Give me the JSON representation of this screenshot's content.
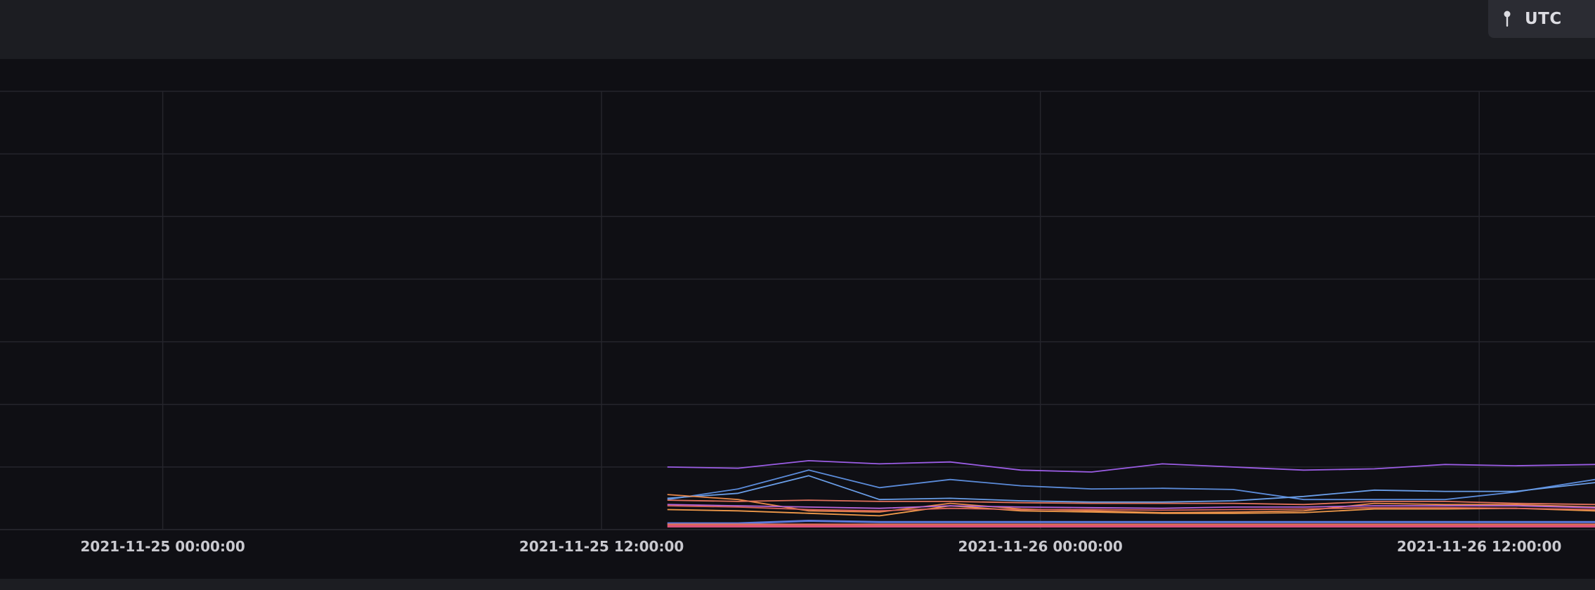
{
  "header": {
    "timezone_label": "UTC",
    "timezone_icon": "pin-icon"
  },
  "colors": {
    "background": "#0f0f14",
    "gridline": "#25252c",
    "tick_text": "#c9c9cf"
  },
  "chart_data": {
    "type": "line",
    "title": "",
    "xlabel": "",
    "ylabel": "",
    "x_axis_type": "datetime",
    "tick_labels": [
      "2021-11-25 00:00:00",
      "2021-11-25 12:00:00",
      "2021-11-26 00:00:00",
      "2021-11-26 12:00:00"
    ],
    "xlim": [
      "2021-11-24 19:33:00",
      "2021-11-26 15:10:00"
    ],
    "ylim": [
      0,
      7
    ],
    "grid": true,
    "legend": "none",
    "x": [
      "2021-11-25 13:48",
      "2021-11-25 15:44",
      "2021-11-25 17:40",
      "2021-11-25 19:36",
      "2021-11-25 21:32",
      "2021-11-25 23:28",
      "2021-11-26 01:24",
      "2021-11-26 03:20",
      "2021-11-26 05:16",
      "2021-11-26 07:12",
      "2021-11-26 09:08",
      "2021-11-26 11:04",
      "2021-11-26 13:00",
      "2021-11-26 15:10"
    ],
    "series": [
      {
        "color": "#9b5de5",
        "values": [
          1.0,
          0.98,
          1.1,
          1.05,
          1.08,
          0.95,
          0.92,
          1.05,
          1.0,
          0.95,
          0.97,
          1.04,
          1.02,
          1.04
        ]
      },
      {
        "color": "#5b8bd9",
        "values": [
          0.48,
          0.65,
          0.95,
          0.67,
          0.8,
          0.7,
          0.65,
          0.66,
          0.64,
          0.48,
          0.48,
          0.48,
          0.6,
          0.8
        ]
      },
      {
        "color": "#6a9ee8",
        "values": [
          0.5,
          0.58,
          0.86,
          0.48,
          0.5,
          0.46,
          0.44,
          0.44,
          0.46,
          0.53,
          0.63,
          0.61,
          0.61,
          0.75
        ]
      },
      {
        "color": "#e8884a",
        "values": [
          0.56,
          0.48,
          0.3,
          0.28,
          0.42,
          0.33,
          0.3,
          0.27,
          0.28,
          0.3,
          0.42,
          0.4,
          0.4,
          0.36
        ]
      },
      {
        "color": "#f09a4a",
        "values": [
          0.32,
          0.3,
          0.26,
          0.22,
          0.38,
          0.3,
          0.28,
          0.26,
          0.26,
          0.27,
          0.33,
          0.33,
          0.34,
          0.3
        ]
      },
      {
        "color": "#e2725b",
        "values": [
          0.47,
          0.45,
          0.47,
          0.45,
          0.45,
          0.43,
          0.42,
          0.42,
          0.42,
          0.4,
          0.45,
          0.45,
          0.42,
          0.4
        ]
      },
      {
        "color": "#b665d9",
        "values": [
          0.4,
          0.38,
          0.36,
          0.34,
          0.38,
          0.36,
          0.35,
          0.34,
          0.36,
          0.36,
          0.38,
          0.38,
          0.38,
          0.35
        ]
      },
      {
        "color": "#d9645a",
        "values": [
          0.38,
          0.36,
          0.32,
          0.3,
          0.34,
          0.32,
          0.32,
          0.31,
          0.32,
          0.33,
          0.35,
          0.35,
          0.34,
          0.32
        ]
      },
      {
        "color": "#5b78d9",
        "values": [
          0.1,
          0.1,
          0.14,
          0.12,
          0.12,
          0.12,
          0.12,
          0.12,
          0.12,
          0.12,
          0.12,
          0.12,
          0.12,
          0.12
        ]
      },
      {
        "color": "#e06a5a",
        "values": [
          0.08,
          0.08,
          0.08,
          0.08,
          0.08,
          0.08,
          0.08,
          0.08,
          0.08,
          0.08,
          0.08,
          0.08,
          0.08,
          0.08
        ]
      },
      {
        "color": "#d9507a",
        "values": [
          0.05,
          0.05,
          0.05,
          0.05,
          0.05,
          0.05,
          0.05,
          0.05,
          0.05,
          0.05,
          0.05,
          0.05,
          0.05,
          0.05
        ]
      }
    ]
  }
}
